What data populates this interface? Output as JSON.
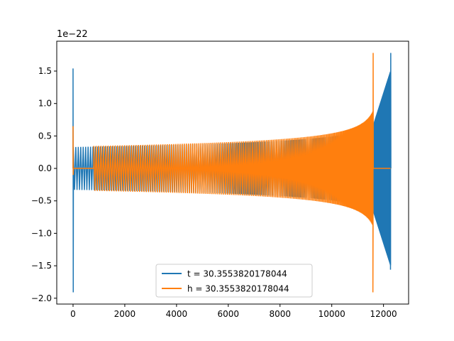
{
  "chart_data": {
    "type": "line",
    "title": "",
    "xlabel": "",
    "ylabel": "",
    "offset_label": "1e−22",
    "xlim": [
      -630,
      12970
    ],
    "ylim": [
      -2.09,
      1.96
    ],
    "x_ticks": [
      0,
      2000,
      4000,
      6000,
      8000,
      10000,
      12000
    ],
    "y_ticks": [
      -2.0,
      -1.5,
      -1.0,
      -0.5,
      0.0,
      0.5,
      1.0,
      1.5
    ],
    "x_tick_labels": [
      "0",
      "2000",
      "4000",
      "6000",
      "8000",
      "10000",
      "12000"
    ],
    "y_tick_labels": [
      "−2.0",
      "−1.5",
      "−1.0",
      "−0.5",
      "0.0",
      "0.5",
      "1.0",
      "1.5"
    ],
    "grid": false,
    "legend_position": "lower-center",
    "series": [
      {
        "name": "t = 30.3553820178044",
        "color": "#1f77b4",
        "initial_spike": {
          "x": 0,
          "max": 1.54,
          "min": -1.91
        },
        "envelope_start": 0.33,
        "merger_x": 12280,
        "merger_peak": 1.78,
        "merger_trough": -1.56,
        "end_x": 12280
      },
      {
        "name": "h = 30.3553820178044",
        "color": "#ff7f0e",
        "initial_spike": {
          "x": 0,
          "max": 0.65,
          "min": -0.1
        },
        "flat_segment": [
          0,
          800
        ],
        "envelope_start": 0.34,
        "merger_x": 11600,
        "merger_peak": 1.78,
        "merger_trough": -1.91,
        "end_x": 12270
      }
    ]
  }
}
